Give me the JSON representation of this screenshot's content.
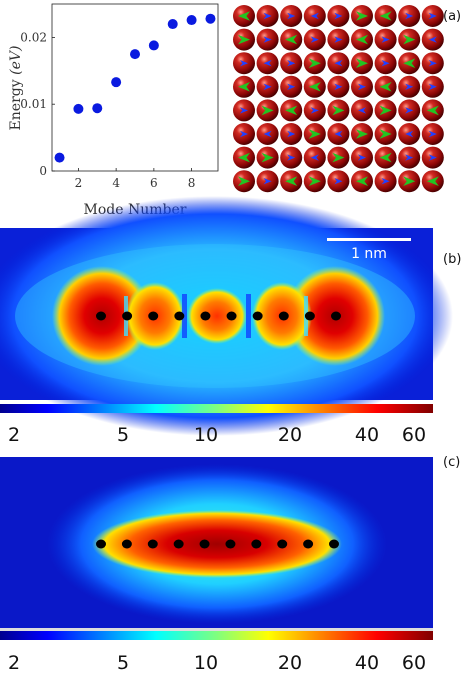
{
  "panel_labels": {
    "a": "(a)",
    "b": "(b)",
    "c": "(c)"
  },
  "chart_data": {
    "type": "scatter",
    "title": "",
    "xlabel": "Mode Number",
    "ylabel": "Energy (eV)",
    "ylabel_parts": {
      "main": "Energy ",
      "unit": "(eV)"
    },
    "x": [
      1,
      2,
      3,
      4,
      5,
      6,
      7,
      8,
      9
    ],
    "y": [
      0.002,
      0.0093,
      0.0094,
      0.0133,
      0.0175,
      0.0188,
      0.022,
      0.0226,
      0.0228
    ],
    "xlim": [
      0.6,
      9.4
    ],
    "ylim": [
      0,
      0.025
    ],
    "xticks": [
      2,
      4,
      6,
      8
    ],
    "yticks": [
      0,
      0.01,
      0.02
    ],
    "ytick_labels": [
      "0",
      "0.01",
      "0.02"
    ],
    "marker_color": "#0a1ae0",
    "grid": false
  },
  "atom_grid": {
    "rows": 8,
    "cols": 9,
    "sphere_color": "#a01010",
    "arrow_colors": {
      "green": "#22c422",
      "blue": "#2040ff"
    }
  },
  "map_b": {
    "scale_bar_label": "1 nm",
    "atom_count": 10,
    "colorbar_ticks": [
      "2",
      "5",
      "10",
      "20",
      "40",
      "60"
    ]
  },
  "map_c": {
    "atom_count": 10,
    "colorbar_ticks": [
      "2",
      "5",
      "10",
      "20",
      "40",
      "60"
    ]
  },
  "colormap": "jet"
}
